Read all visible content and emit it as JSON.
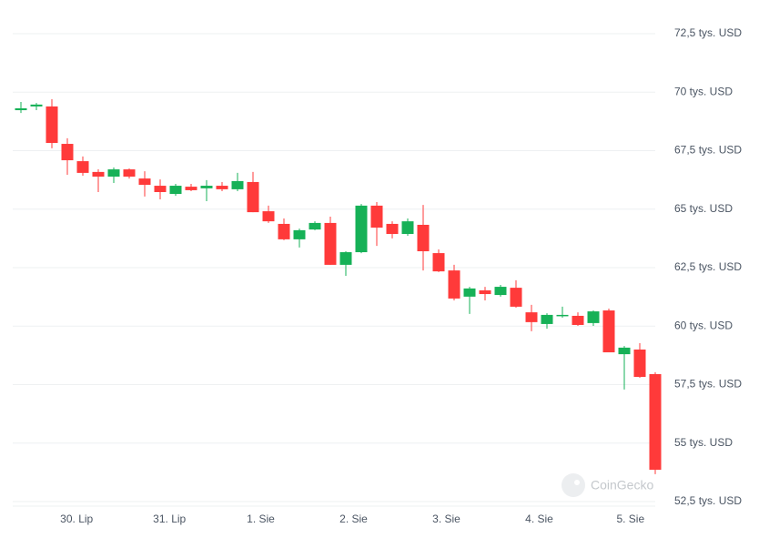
{
  "chart_data": {
    "type": "candlestick",
    "watermark": "CoinGecko",
    "up_color": "#16b157",
    "down_color": "#ff3a3a",
    "grid": true,
    "categories": [
      null,
      null,
      null,
      null,
      null,
      null,
      null,
      null,
      null,
      null,
      null,
      null,
      null,
      null,
      null,
      null,
      null,
      null,
      null,
      null,
      null,
      null,
      null,
      null,
      null,
      null,
      null,
      null,
      null,
      null,
      null,
      null,
      null,
      null,
      null,
      null,
      null,
      null,
      null,
      null,
      null,
      null
    ],
    "open": [
      69230,
      69390,
      69390,
      67790,
      67050,
      66590,
      66390,
      66700,
      66310,
      66000,
      65650,
      65960,
      65890,
      66000,
      65850,
      66160,
      64910,
      64370,
      63710,
      64130,
      64410,
      62620,
      63160,
      65150,
      64370,
      63940,
      64330,
      63120,
      62380,
      61260,
      61530,
      61330,
      61640,
      60590,
      60090,
      60440,
      60440,
      60130,
      60670,
      58800,
      59000,
      57950
    ],
    "high": [
      69580,
      69540,
      69700,
      68030,
      67250,
      66700,
      66780,
      66740,
      66620,
      66270,
      66080,
      66080,
      66240,
      66160,
      66550,
      66590,
      65150,
      64600,
      64170,
      64480,
      64680,
      63200,
      65220,
      65300,
      64480,
      64600,
      65180,
      63280,
      62620,
      61680,
      61680,
      61760,
      61960,
      60910,
      60550,
      60830,
      60590,
      60670,
      60750,
      59150,
      59270,
      58030
    ],
    "low": [
      69110,
      69230,
      67600,
      66470,
      66430,
      65730,
      66120,
      66310,
      65540,
      65420,
      65570,
      65770,
      65340,
      65770,
      65770,
      64870,
      64410,
      63670,
      63360,
      64100,
      62620,
      62150,
      63120,
      63430,
      63750,
      63860,
      62380,
      62310,
      61100,
      60520,
      61100,
      61260,
      60790,
      59780,
      59890,
      60360,
      60010,
      60010,
      58880,
      57290,
      57790,
      53670
    ],
    "close": [
      69310,
      69470,
      67830,
      67090,
      66550,
      66390,
      66700,
      66390,
      66040,
      65730,
      66000,
      65810,
      66000,
      65850,
      66200,
      64870,
      64480,
      63710,
      64100,
      64410,
      62620,
      63160,
      65150,
      64210,
      63940,
      64480,
      63200,
      62340,
      61180,
      61610,
      61370,
      61680,
      60830,
      60170,
      60480,
      60480,
      60050,
      60630,
      58880,
      59080,
      57830,
      53860
    ],
    "xlim": [
      -0.5,
      41.5
    ],
    "xticks": [
      {
        "value": 3.6,
        "label": "30. Lip"
      },
      {
        "value": 9.6,
        "label": "31. Lip"
      },
      {
        "value": 15.5,
        "label": "1. Sie"
      },
      {
        "value": 21.5,
        "label": "2. Sie"
      },
      {
        "value": 27.5,
        "label": "3. Sie"
      },
      {
        "value": 33.5,
        "label": "4. Sie"
      },
      {
        "value": 39.4,
        "label": "5. Sie"
      }
    ],
    "ylim": [
      52500,
      72500
    ],
    "yticks": [
      {
        "value": 52500,
        "label": "52,5 tys. USD"
      },
      {
        "value": 55000,
        "label": "55 tys. USD"
      },
      {
        "value": 57500,
        "label": "57,5 tys. USD"
      },
      {
        "value": 60000,
        "label": "60 tys. USD"
      },
      {
        "value": 62500,
        "label": "62,5 tys. USD"
      },
      {
        "value": 65000,
        "label": "65 tys. USD"
      },
      {
        "value": 67500,
        "label": "67,5 tys. USD"
      },
      {
        "value": 70000,
        "label": "70 tys. USD"
      },
      {
        "value": 72500,
        "label": "72,5 tys. USD"
      }
    ]
  }
}
